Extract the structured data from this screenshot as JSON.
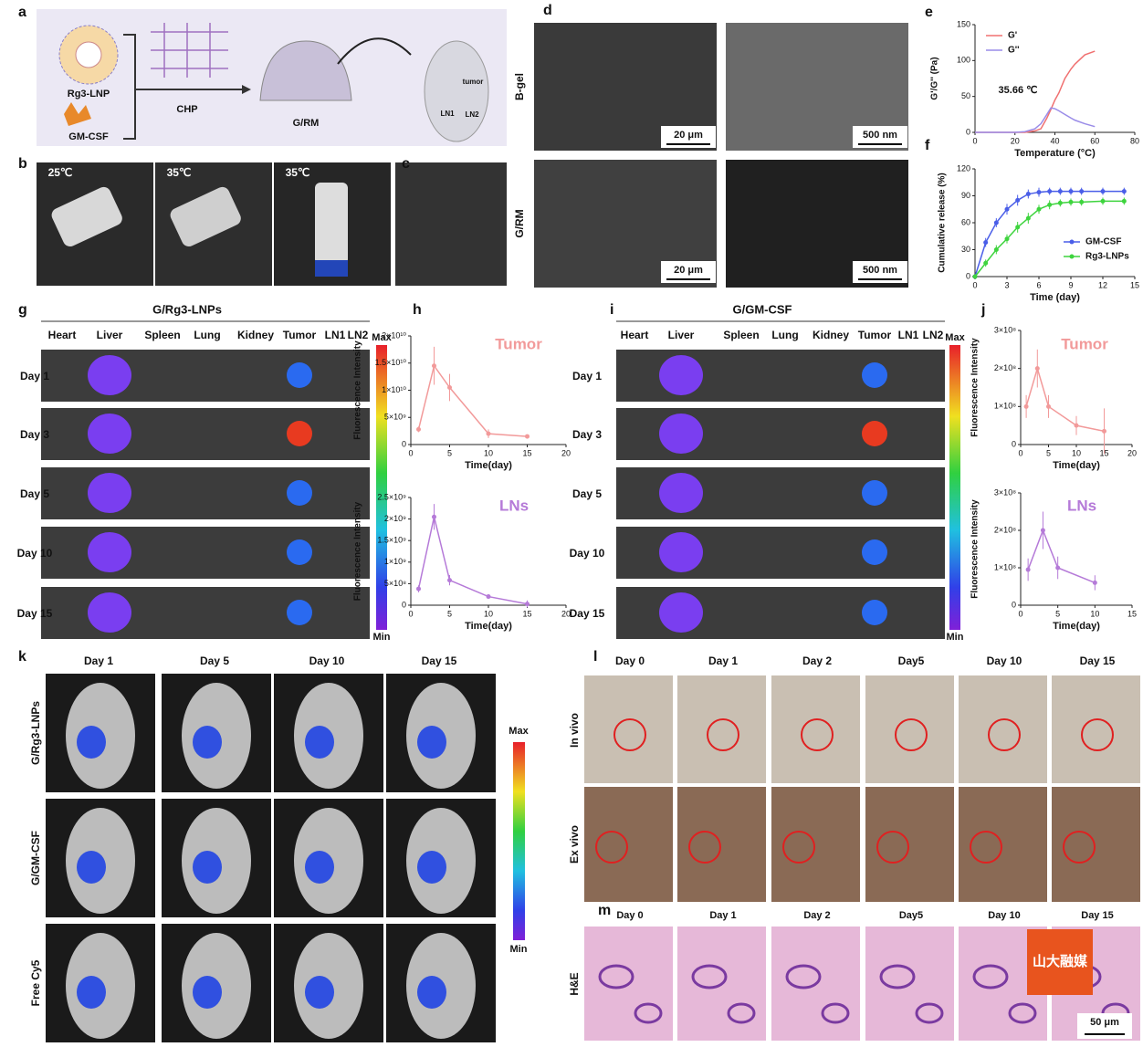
{
  "panel_labels": [
    "a",
    "b",
    "c",
    "d",
    "e",
    "f",
    "g",
    "h",
    "i",
    "j",
    "k",
    "l",
    "m"
  ],
  "a": {
    "items": [
      "Rg3-LNP",
      "GM-CSF",
      "CHP",
      "G/RM",
      "tumor",
      "LN1",
      "LN2"
    ]
  },
  "b": {
    "temps": [
      "25℃",
      "35℃",
      "35℃"
    ]
  },
  "d": {
    "rows": [
      "B-gel",
      "G/RM"
    ],
    "scale_bars": [
      "20 μm",
      "500 nm",
      "20 μm",
      "500 nm"
    ]
  },
  "g": {
    "title": "G/Rg3-LNPs",
    "organs": [
      "Heart",
      "Liver",
      "Spleen",
      "Lung",
      "Kidney",
      "Tumor",
      "LN1",
      "LN2"
    ],
    "days": [
      "Day 1",
      "Day 3",
      "Day 5",
      "Day 10",
      "Day 15"
    ],
    "max": "Max",
    "min": "Min"
  },
  "i": {
    "title": "G/GM-CSF",
    "organs": [
      "Heart",
      "Liver",
      "Spleen",
      "Lung",
      "Kidney",
      "Tumor",
      "LN1",
      "LN2"
    ],
    "days": [
      "Day 1",
      "Day 3",
      "Day 5",
      "Day 10",
      "Day 15"
    ],
    "max": "Max",
    "min": "Min"
  },
  "k": {
    "days": [
      "Day 1",
      "Day 5",
      "Day 10",
      "Day 15"
    ],
    "groups": [
      "G/Rg3-LNPs",
      "G/GM-CSF",
      "Free Cy5"
    ],
    "max": "Max",
    "min": "Min"
  },
  "l": {
    "days": [
      "Day 0",
      "Day 1",
      "Day 2",
      "Day5",
      "Day 10",
      "Day 15"
    ],
    "rows": [
      "In vivo",
      "Ex vivo"
    ]
  },
  "m": {
    "days": [
      "Day 0",
      "Day 1",
      "Day 2",
      "Day5",
      "Day 10",
      "Day 15"
    ],
    "stain": "H&E",
    "scale_bar": "50 μm"
  },
  "watermark": "山大融媒",
  "chart_data": [
    {
      "type": "line",
      "x_label": "Temperature (°C)",
      "y_label": "G'/G'' (Pa)",
      "xlim": [
        0,
        80
      ],
      "xticks": [
        0,
        20,
        40,
        60,
        80
      ],
      "ylim": [
        0,
        150
      ],
      "yticks": [
        0,
        50,
        100,
        150
      ],
      "legend": "upper left",
      "annotations": [
        "35.66 ℃"
      ],
      "grid": false,
      "x": [
        0,
        10,
        20,
        25,
        30,
        33,
        36,
        38,
        40,
        42,
        45,
        48,
        50,
        55,
        60
      ],
      "series": [
        {
          "name": "G'",
          "color": "#f07070",
          "values": [
            0,
            0,
            0,
            0,
            2,
            5,
            20,
            32,
            45,
            55,
            75,
            88,
            95,
            108,
            113
          ]
        },
        {
          "name": "G''",
          "color": "#9a8ce8",
          "values": [
            0,
            0,
            0,
            1,
            5,
            12,
            25,
            34,
            33,
            30,
            25,
            20,
            17,
            12,
            8
          ]
        }
      ]
    },
    {
      "type": "line",
      "x_label": "Time (day)",
      "y_label": "Cumulative release (%)",
      "xlim": [
        0,
        15
      ],
      "xticks": [
        0,
        3,
        6,
        9,
        12,
        15
      ],
      "ylim": [
        0,
        120
      ],
      "yticks": [
        0,
        30,
        60,
        90,
        120
      ],
      "legend": "lower right",
      "markers": true,
      "grid": false,
      "x": [
        0,
        1,
        2,
        3,
        4,
        5,
        6,
        7,
        8,
        9,
        10,
        12,
        14
      ],
      "series": [
        {
          "name": "GM-CSF",
          "color": "#4a5ee8",
          "values": [
            0,
            38,
            60,
            75,
            85,
            92,
            94,
            95,
            95,
            95,
            95,
            95,
            95
          ],
          "errors": [
            0,
            5,
            5,
            6,
            6,
            5,
            5,
            4,
            4,
            4,
            4,
            4,
            4
          ]
        },
        {
          "name": "Rg3-LNPs",
          "color": "#3ed43e",
          "values": [
            0,
            15,
            30,
            42,
            55,
            65,
            75,
            80,
            82,
            83,
            83,
            84,
            84
          ],
          "errors": [
            0,
            4,
            5,
            5,
            6,
            6,
            5,
            5,
            4,
            4,
            4,
            4,
            4
          ]
        }
      ]
    },
    {
      "type": "line",
      "x_label": "Time(day)",
      "y_label": "Fluorescence Intensity",
      "xlim": [
        0,
        20
      ],
      "xticks": [
        0,
        5,
        10,
        15,
        20
      ],
      "ylim": [
        0,
        20000000000
      ],
      "yticks": [
        0,
        {
          "value": 5000000000,
          "label": "5×10⁹"
        },
        {
          "value": 10000000000,
          "label": "1×10¹⁰"
        },
        {
          "value": 15000000000,
          "label": "1.5×10¹⁰"
        },
        {
          "value": 20000000000,
          "label": "2×10¹⁰"
        }
      ],
      "annotations": [
        "Tumor"
      ],
      "markers": true,
      "color": "#f29a9a",
      "grid": false,
      "x": [
        1,
        3,
        5,
        10,
        15
      ],
      "values": [
        2800000000,
        14500000000,
        10500000000,
        2000000000,
        1500000000
      ],
      "errors": [
        500000000,
        3500000000,
        2500000000,
        800000000,
        300000000
      ]
    },
    {
      "type": "line",
      "x_label": "Time(day)",
      "y_label": "Fluorescence Intensity",
      "xlim": [
        0,
        20
      ],
      "xticks": [
        0,
        5,
        10,
        15,
        20
      ],
      "ylim": [
        0,
        2500000000
      ],
      "yticks": [
        0,
        {
          "value": 500000000,
          "label": "5×10⁸"
        },
        {
          "value": 1000000000,
          "label": "1×10⁹"
        },
        {
          "value": 1500000000,
          "label": "1.5×10⁹"
        },
        {
          "value": 2000000000,
          "label": "2×10⁹"
        },
        {
          "value": 2500000000,
          "label": "2.5×10⁹"
        }
      ],
      "annotations": [
        "LNs"
      ],
      "markers": true,
      "color": "#b57ad8",
      "grid": false,
      "x": [
        1,
        3,
        5,
        10,
        15
      ],
      "values": [
        380000000,
        2050000000,
        580000000,
        200000000,
        30000000
      ],
      "errors": [
        80000000,
        300000000,
        120000000,
        40000000,
        80000000
      ]
    },
    {
      "type": "line",
      "x_label": "Time(day)",
      "y_label": "Fluorescence Intensity",
      "xlim": [
        0,
        20
      ],
      "xticks": [
        0,
        5,
        10,
        15,
        20
      ],
      "ylim": [
        0,
        300000000
      ],
      "yticks": [
        0,
        {
          "value": 100000000,
          "label": "1×10⁸"
        },
        {
          "value": 200000000,
          "label": "2×10⁸"
        },
        {
          "value": 300000000,
          "label": "3×10⁸"
        }
      ],
      "annotations": [
        "Tumor"
      ],
      "markers": true,
      "color": "#f29a9a",
      "grid": false,
      "x": [
        1,
        3,
        5,
        10,
        15
      ],
      "values": [
        100000000,
        200000000,
        100000000,
        50000000,
        35000000
      ],
      "errors": [
        30000000,
        50000000,
        30000000,
        25000000,
        60000000
      ]
    },
    {
      "type": "line",
      "x_label": "Time(day)",
      "y_label": "Fluorescence Intensity",
      "xlim": [
        0,
        15
      ],
      "xticks": [
        0,
        5,
        10,
        15
      ],
      "ylim": [
        0,
        300000000
      ],
      "yticks": [
        0,
        {
          "value": 100000000,
          "label": "1×10⁸"
        },
        {
          "value": 200000000,
          "label": "2×10⁸"
        },
        {
          "value": 300000000,
          "label": "3×10⁸"
        }
      ],
      "annotations": [
        "LNs"
      ],
      "markers": true,
      "color": "#b57ad8",
      "grid": false,
      "x": [
        1,
        3,
        5,
        10
      ],
      "values": [
        95000000,
        200000000,
        100000000,
        60000000
      ],
      "errors": [
        30000000,
        50000000,
        30000000,
        20000000
      ]
    }
  ]
}
